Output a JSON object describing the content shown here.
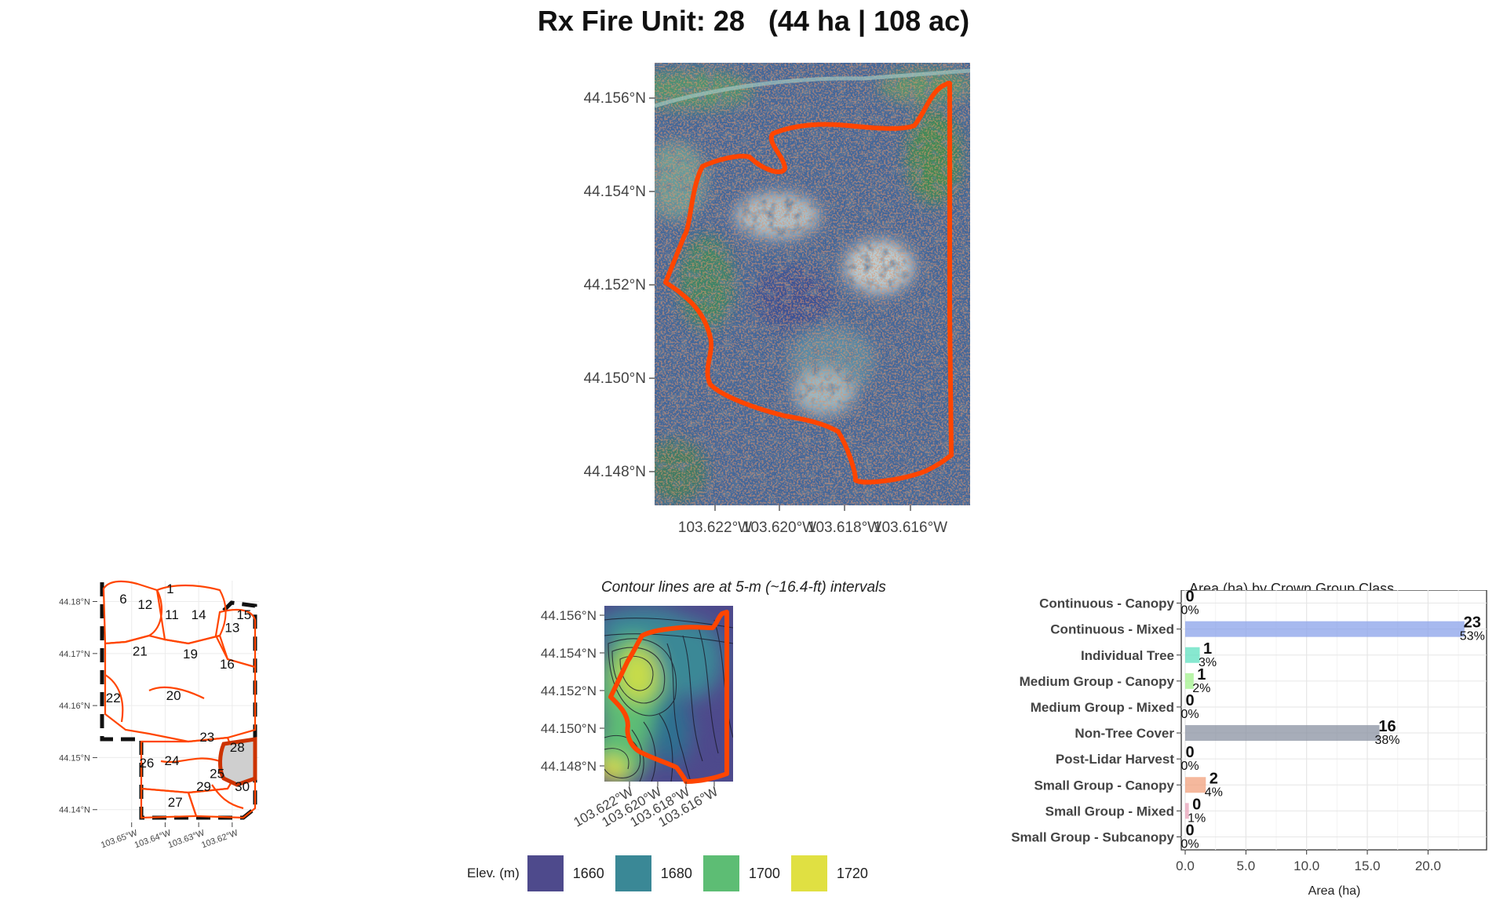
{
  "title": "Rx Fire Unit: 28   (44 ha | 108 ac)",
  "main_map": {
    "lat_ticks": [
      "44.156°N",
      "44.154°N",
      "44.152°N",
      "44.150°N",
      "44.148°N"
    ],
    "lon_ticks": [
      "103.622°W",
      "103.620°W",
      "103.618°W",
      "103.616°W"
    ],
    "boundary_color": "#ff4500"
  },
  "locator_map": {
    "lat_ticks": [
      "44.18°N",
      "44.17°N",
      "44.16°N",
      "44.15°N",
      "44.14°N"
    ],
    "lon_ticks": [
      "103.65°W",
      "103.64°W",
      "103.63°W",
      "103.62°W"
    ],
    "units": [
      {
        "id": "6",
        "lon": -103.6525,
        "lat": 44.1805
      },
      {
        "id": "12",
        "lon": -103.646,
        "lat": 44.1795
      },
      {
        "id": "1",
        "lon": -103.6385,
        "lat": 44.1825
      },
      {
        "id": "11",
        "lon": -103.638,
        "lat": 44.1775
      },
      {
        "id": "14",
        "lon": -103.63,
        "lat": 44.1775
      },
      {
        "id": "15",
        "lon": -103.6165,
        "lat": 44.1775
      },
      {
        "id": "13",
        "lon": -103.62,
        "lat": 44.175
      },
      {
        "id": "21",
        "lon": -103.6475,
        "lat": 44.1705
      },
      {
        "id": "19",
        "lon": -103.6325,
        "lat": 44.17
      },
      {
        "id": "16",
        "lon": -103.6215,
        "lat": 44.168
      },
      {
        "id": "22",
        "lon": -103.6555,
        "lat": 44.1615
      },
      {
        "id": "20",
        "lon": -103.6375,
        "lat": 44.162
      },
      {
        "id": "23",
        "lon": -103.6275,
        "lat": 44.154
      },
      {
        "id": "28",
        "lon": -103.6185,
        "lat": 44.152
      },
      {
        "id": "26",
        "lon": -103.6455,
        "lat": 44.149
      },
      {
        "id": "24",
        "lon": -103.638,
        "lat": 44.1495
      },
      {
        "id": "25",
        "lon": -103.6245,
        "lat": 44.147
      },
      {
        "id": "30",
        "lon": -103.617,
        "lat": 44.1445
      },
      {
        "id": "29",
        "lon": -103.6285,
        "lat": 44.1445
      },
      {
        "id": "27",
        "lon": -103.637,
        "lat": 44.1415
      }
    ],
    "highlight_unit": "28",
    "highlight_color": "#cc3300"
  },
  "elevation_map": {
    "note": "Contour lines are at 5-m (~16.4-ft) intervals",
    "lat_ticks": [
      "44.156°N",
      "44.154°N",
      "44.152°N",
      "44.150°N",
      "44.148°N"
    ],
    "lon_ticks": [
      "103.622°W",
      "103.620°W",
      "103.618°W",
      "103.616°W"
    ],
    "legend_title": "Elev. (m)",
    "legend": [
      {
        "label": "1660",
        "color": "#4e4a8c"
      },
      {
        "label": "1680",
        "color": "#3a8896"
      },
      {
        "label": "1700",
        "color": "#5dbd74"
      },
      {
        "label": "1720",
        "color": "#e0e042"
      }
    ]
  },
  "chart_data": {
    "type": "bar",
    "orientation": "horizontal",
    "title": "Area (ha) by Crown Group Class",
    "xlabel": "Area (ha)",
    "ylabel": "",
    "xlim": [
      0,
      24.5
    ],
    "x_ticks": [
      "0.0",
      "5.0",
      "10.0",
      "15.0",
      "20.0"
    ],
    "x_tick_values": [
      0,
      5,
      10,
      15,
      20
    ],
    "categories": [
      "Continuous - Canopy",
      "Continuous - Mixed",
      "Individual Tree",
      "Medium Group - Canopy",
      "Medium Group - Mixed",
      "Non-Tree Cover",
      "Post-Lidar Harvest",
      "Small Group - Canopy",
      "Small Group - Mixed",
      "Small Group - Subcanopy"
    ],
    "values": [
      0,
      23,
      1.2,
      0.7,
      0,
      16,
      0,
      1.7,
      0.3,
      0
    ],
    "value_labels": [
      "0",
      "23",
      "1",
      "1",
      "0",
      "16",
      "0",
      "2",
      "0",
      "0"
    ],
    "percent_labels": [
      "0%",
      "53%",
      "3%",
      "2%",
      "0%",
      "38%",
      "0%",
      "4%",
      "1%",
      "0%"
    ],
    "colors": [
      "#e04848",
      "#8aa2ea",
      "#5fe0c0",
      "#a2f28c",
      "#9a9a9a",
      "#8a92a2",
      "#b0b0b0",
      "#f2a07c",
      "#e8a2b8",
      "#c0c0c0"
    ],
    "grid": true
  }
}
